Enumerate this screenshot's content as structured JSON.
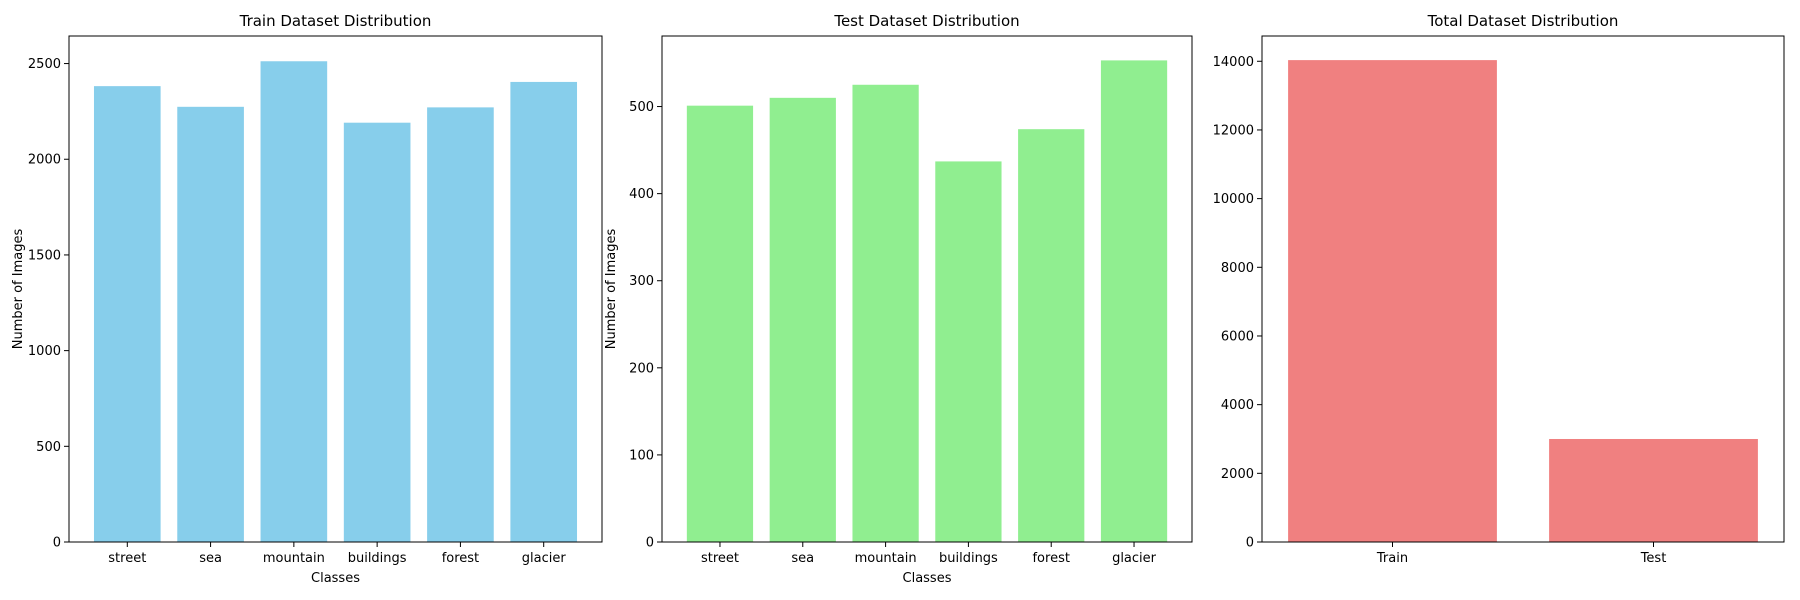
{
  "chart_data": [
    {
      "type": "bar",
      "title": "Train Dataset Distribution",
      "xlabel": "Classes",
      "ylabel": "Number of Images",
      "categories": [
        "street",
        "sea",
        "mountain",
        "buildings",
        "forest",
        "glacier"
      ],
      "values": [
        2382,
        2274,
        2512,
        2191,
        2271,
        2404
      ],
      "ylim": [
        0,
        2644
      ],
      "yticks": [
        0,
        500,
        1000,
        1500,
        2000,
        2500
      ],
      "color": "#87CEEB",
      "grid": false
    },
    {
      "type": "bar",
      "title": "Test Dataset Distribution",
      "xlabel": "Classes",
      "ylabel": "Number of Images",
      "categories": [
        "street",
        "sea",
        "mountain",
        "buildings",
        "forest",
        "glacier"
      ],
      "values": [
        501,
        510,
        525,
        437,
        474,
        553
      ],
      "ylim": [
        0,
        581
      ],
      "yticks": [
        0,
        100,
        200,
        300,
        400,
        500
      ],
      "color": "#90EE90",
      "grid": false
    },
    {
      "type": "bar",
      "title": "Total Dataset Distribution",
      "xlabel": "",
      "ylabel": "",
      "categories": [
        "Train",
        "Test"
      ],
      "values": [
        14034,
        3000
      ],
      "ylim": [
        0,
        14736
      ],
      "yticks": [
        0,
        2000,
        4000,
        6000,
        8000,
        10000,
        12000,
        14000
      ],
      "color": "#F08080",
      "grid": false
    }
  ]
}
